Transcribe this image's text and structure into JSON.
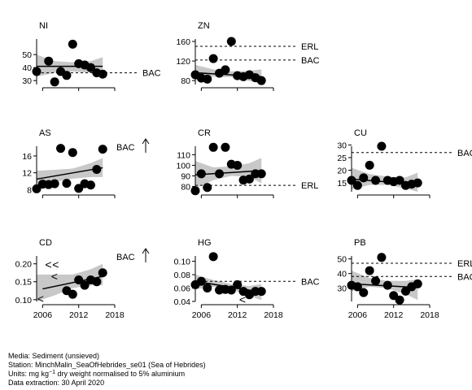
{
  "chart_data": [
    {
      "type": "scatter",
      "title": "NI",
      "xlim": [
        2005,
        2018
      ],
      "ylim": [
        27,
        62
      ],
      "yticks": [
        30,
        40,
        50
      ],
      "xticks": [],
      "x": [
        2005,
        2007,
        2008,
        2009,
        2010,
        2011,
        2012,
        2013,
        2014,
        2015,
        2016
      ],
      "y": [
        37,
        45,
        29,
        37,
        34,
        58,
        43,
        42,
        40,
        36,
        35
      ],
      "trend": {
        "x": [
          2005,
          2016
        ],
        "y": [
          41,
          41
        ]
      },
      "band": {
        "x": [
          2005,
          2008,
          2011,
          2014,
          2016
        ],
        "upper": [
          50,
          45,
          44,
          45,
          48
        ],
        "lower": [
          33,
          36,
          37,
          36,
          34
        ]
      },
      "refs": [
        {
          "label": "BAC",
          "y": 36
        }
      ],
      "arrow": false,
      "flags": []
    },
    {
      "type": "scatter",
      "title": "ZN",
      "xlim": [
        2005,
        2018
      ],
      "ylim": [
        72,
        165
      ],
      "yticks": [
        80,
        120,
        160
      ],
      "xticks": [],
      "x": [
        2005,
        2006,
        2007,
        2008,
        2009,
        2010,
        2011,
        2012,
        2013,
        2014,
        2015,
        2016
      ],
      "y": [
        92,
        85,
        83,
        125,
        95,
        102,
        160,
        90,
        88,
        92,
        86,
        80
      ],
      "trend": {
        "x": [
          2005,
          2016
        ],
        "y": [
          96,
          88
        ]
      },
      "band": {
        "x": [
          2005,
          2008,
          2011,
          2014,
          2016
        ],
        "upper": [
          112,
          103,
          99,
          100,
          103
        ],
        "lower": [
          81,
          88,
          87,
          79,
          73
        ]
      },
      "refs": [
        {
          "label": "ERL",
          "y": 150
        },
        {
          "label": "BAC",
          "y": 122
        }
      ],
      "arrow": false,
      "flags": []
    },
    {
      "type": "scatter",
      "title": "AS",
      "xlim": [
        2005,
        2018
      ],
      "ylim": [
        7.5,
        18.3
      ],
      "yticks": [
        8,
        12,
        16
      ],
      "xticks": [],
      "x": [
        2005,
        2006,
        2007,
        2008,
        2009,
        2010,
        2011,
        2012,
        2013,
        2014,
        2015,
        2016
      ],
      "y": [
        8.2,
        9.3,
        9.2,
        9.4,
        17.8,
        9.5,
        16.8,
        8.3,
        9.4,
        9.1,
        12.8,
        17.6
      ],
      "trend": {
        "x": [
          2005,
          2016
        ],
        "y": [
          10.5,
          13.2
        ]
      },
      "band": {
        "x": [
          2005,
          2008,
          2011,
          2014,
          2016
        ],
        "upper": [
          12.5,
          12.7,
          13,
          14.3,
          15.5
        ],
        "lower": [
          8.6,
          9.8,
          10.6,
          11,
          11
        ]
      },
      "refs": [
        {
          "label": "BAC",
          "y": null
        }
      ],
      "arrow": true,
      "flags": []
    },
    {
      "type": "scatter",
      "title": "CR",
      "xlim": [
        2005,
        2018
      ],
      "ylim": [
        75,
        118
      ],
      "yticks": [
        80,
        90,
        100,
        110
      ],
      "xticks": [],
      "x": [
        2005,
        2006,
        2007,
        2008,
        2009,
        2010,
        2011,
        2012,
        2013,
        2014,
        2015,
        2016
      ],
      "y": [
        76,
        92,
        79,
        117,
        92,
        117,
        101,
        100,
        86,
        87,
        92,
        92
      ],
      "trend": {
        "x": [
          2005,
          2016
        ],
        "y": [
          91,
          95
        ]
      },
      "band": {
        "x": [
          2005,
          2008,
          2011,
          2014,
          2016
        ],
        "upper": [
          104,
          98,
          99,
          102,
          107
        ],
        "lower": [
          78,
          86,
          90,
          89,
          83
        ]
      },
      "refs": [
        {
          "label": "ERL",
          "y": 81
        }
      ],
      "arrow": false,
      "flags": []
    },
    {
      "type": "scatter",
      "title": "CU",
      "xlim": [
        2005,
        2018
      ],
      "ylim": [
        11.5,
        29.5
      ],
      "yticks": [
        15,
        20,
        25,
        30
      ],
      "xticks": [],
      "x": [
        2005,
        2006,
        2007,
        2008,
        2009,
        2010,
        2011,
        2012,
        2013,
        2014,
        2015,
        2016
      ],
      "y": [
        16,
        14,
        17,
        22,
        16,
        29.5,
        16,
        15.5,
        16,
        14,
        14.5,
        15
      ],
      "trend": {
        "x": [
          2005,
          2016
        ],
        "y": [
          16.5,
          14.5
        ]
      },
      "band": {
        "x": [
          2005,
          2008,
          2011,
          2014,
          2016
        ],
        "upper": [
          21,
          18.5,
          17.5,
          17.2,
          19
        ],
        "lower": [
          12.5,
          14.2,
          14.2,
          12.8,
          11.5
        ]
      },
      "refs": [
        {
          "label": "BAC",
          "y": 27
        }
      ],
      "arrow": false,
      "flags": []
    },
    {
      "type": "scatter",
      "title": "CD",
      "xlim": [
        2005,
        2018
      ],
      "ylim": [
        0.095,
        0.222
      ],
      "yticks": [
        0.1,
        0.15,
        0.2
      ],
      "xticks": [
        2006,
        2012,
        2018
      ],
      "x": [
        2010,
        2011,
        2012,
        2013,
        2014,
        2015,
        2016
      ],
      "y": [
        0.125,
        0.115,
        0.155,
        0.14,
        0.155,
        0.15,
        0.175
      ],
      "trend": {
        "x": [
          2006,
          2016
        ],
        "y": [
          0.13,
          0.165
        ]
      },
      "band": {
        "x": [
          2005,
          2008,
          2011,
          2014,
          2016
        ],
        "upper": [
          0.17,
          0.17,
          0.17,
          0.185,
          0.2
        ],
        "lower": [
          0.095,
          0.112,
          0.132,
          0.14,
          0.14
        ]
      },
      "refs": [
        {
          "label": "BAC",
          "y": null
        }
      ],
      "arrow": true,
      "flags": [
        {
          "x": 2006.4,
          "y": 0.198,
          "dir": "<"
        },
        {
          "x": 2007.6,
          "y": 0.198,
          "dir": "<"
        },
        {
          "x": 2007.4,
          "y": 0.165,
          "dir": "<"
        },
        {
          "x": 2005.1,
          "y": 0.103,
          "dir": "<"
        }
      ]
    },
    {
      "type": "scatter",
      "title": "HG",
      "xlim": [
        2005,
        2018
      ],
      "ylim": [
        0.04,
        0.108
      ],
      "yticks": [
        0.04,
        0.06,
        0.08,
        0.1
      ],
      "xticks": [
        2006,
        2012,
        2018
      ],
      "x": [
        2005,
        2006,
        2007,
        2008,
        2009,
        2010,
        2011,
        2012,
        2013,
        2014,
        2015,
        2016
      ],
      "y": [
        0.065,
        0.07,
        0.06,
        0.107,
        0.057,
        0.058,
        0.057,
        0.065,
        0.055,
        0.05,
        0.055,
        0.055
      ],
      "trend": {
        "x": [
          2005,
          2016
        ],
        "y": [
          0.07,
          0.054
        ]
      },
      "band": {
        "x": [
          2005,
          2008,
          2011,
          2014,
          2016
        ],
        "upper": [
          0.08,
          0.072,
          0.066,
          0.063,
          0.066
        ],
        "lower": [
          0.058,
          0.062,
          0.058,
          0.048,
          0.042
        ]
      },
      "refs": [
        {
          "label": "BAC",
          "y": 0.07
        }
      ],
      "arrow": false,
      "flags": [
        {
          "x": 2012.3,
          "y": 0.043,
          "dir": "<"
        }
      ]
    },
    {
      "type": "scatter",
      "title": "PB",
      "xlim": [
        2005,
        2018
      ],
      "ylim": [
        21,
        52
      ],
      "yticks": [
        30,
        40,
        50
      ],
      "xticks": [
        2006,
        2012,
        2018
      ],
      "x": [
        2005,
        2006,
        2007,
        2008,
        2009,
        2010,
        2011,
        2012,
        2013,
        2014,
        2015,
        2016
      ],
      "y": [
        32,
        31,
        27,
        42,
        35,
        51,
        32,
        25,
        22,
        28,
        31,
        33
      ],
      "trend": {
        "x": [
          2005,
          2016
        ],
        "y": [
          33,
          30.5
        ]
      },
      "band": {
        "x": [
          2005,
          2008,
          2011,
          2014,
          2016
        ],
        "upper": [
          42,
          37,
          35,
          35,
          36
        ],
        "lower": [
          28,
          31,
          30,
          26,
          22
        ]
      },
      "refs": [
        {
          "label": "ERL",
          "y": 47
        },
        {
          "label": "BAC",
          "y": 38
        }
      ],
      "arrow": false,
      "flags": []
    }
  ],
  "footer": {
    "media": "Media: Sediment (unsieved)",
    "station": "Station: MinchMalin_SeaOfHebrides_se01 (Sea of Hebrides)",
    "units_pre": "Units:  mg kg",
    "units_sup": "−1",
    "units_post": " dry weight normalised to 5% aluminium",
    "extraction": "Data extraction: 30 April 2020"
  }
}
